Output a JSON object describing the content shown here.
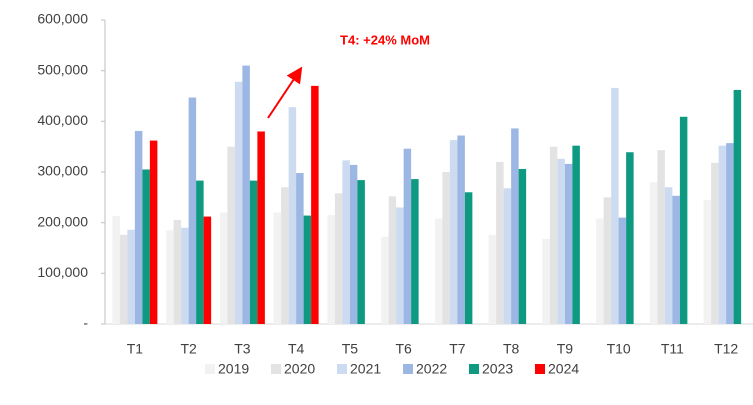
{
  "chart_data": {
    "type": "bar",
    "annotation": "T4: +24% MoM",
    "categories": [
      "T1",
      "T2",
      "T3",
      "T4",
      "T5",
      "T6",
      "T7",
      "T8",
      "T9",
      "T10",
      "T11",
      "T12"
    ],
    "series": [
      {
        "name": "2019",
        "color": "#f2f2f2",
        "values": [
          213000,
          185000,
          220000,
          220000,
          215000,
          172000,
          208000,
          176000,
          168000,
          208000,
          280000,
          245000
        ]
      },
      {
        "name": "2020",
        "color": "#e3e3e3",
        "values": [
          176000,
          205000,
          350000,
          270000,
          258000,
          252000,
          300000,
          320000,
          350000,
          250000,
          343000,
          318000
        ]
      },
      {
        "name": "2021",
        "color": "#cddbf1",
        "values": [
          186000,
          190000,
          478000,
          428000,
          323000,
          230000,
          363000,
          268000,
          326000,
          466000,
          270000,
          352000
        ]
      },
      {
        "name": "2022",
        "color": "#9cb7e3",
        "values": [
          381000,
          447000,
          510000,
          298000,
          314000,
          346000,
          372000,
          386000,
          316000,
          210000,
          253000,
          357000
        ]
      },
      {
        "name": "2023",
        "color": "#0e9a80",
        "values": [
          305000,
          283000,
          283000,
          214000,
          284000,
          286000,
          260000,
          306000,
          352000,
          339000,
          409000,
          462000
        ]
      },
      {
        "name": "2024",
        "color": "#ff0000",
        "values": [
          362000,
          212000,
          380000,
          470000,
          null,
          null,
          null,
          null,
          null,
          null,
          null,
          null
        ]
      }
    ],
    "ylim": [
      0,
      600000
    ],
    "yticks": [
      {
        "value": 0,
        "label": "-"
      },
      {
        "value": 100000,
        "label": "100,000"
      },
      {
        "value": 200000,
        "label": "200,000"
      },
      {
        "value": 300000,
        "label": "300,000"
      },
      {
        "value": 400000,
        "label": "400,000"
      },
      {
        "value": 500000,
        "label": "500,000"
      },
      {
        "value": 600000,
        "label": "600,000"
      }
    ],
    "legend": "bottom"
  }
}
